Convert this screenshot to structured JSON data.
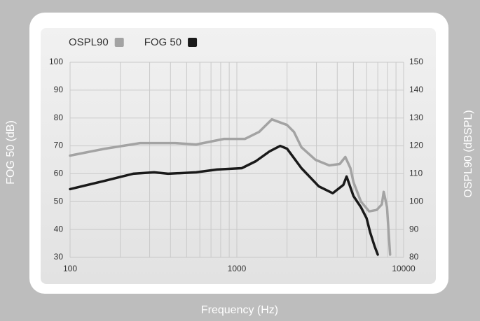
{
  "chart_data": {
    "type": "line",
    "x_label": "Frequency (Hz)",
    "y_label": "FOG 50 (dB)",
    "y2_label": "OSPL90 (dBSPL)",
    "xlim": [
      100,
      10000
    ],
    "xticks": [
      100,
      1000,
      10000
    ],
    "xscale": "log",
    "ylim": [
      30,
      100
    ],
    "yticks": [
      30,
      40,
      50,
      60,
      70,
      80,
      90,
      100
    ],
    "y2lim": [
      80,
      150
    ],
    "y2ticks": [
      80,
      90,
      100,
      110,
      120,
      130,
      140,
      150
    ],
    "grid": true,
    "minor_grid": true,
    "legend": "top-left",
    "series": [
      {
        "name": "OSPL90",
        "color": "#a3a3a3",
        "axis": "y2",
        "x": [
          100,
          162,
          263,
          427,
          570,
          838,
          1120,
          1360,
          1620,
          2000,
          2200,
          2440,
          2960,
          3580,
          4140,
          4470,
          4800,
          5000,
          5550,
          6220,
          6900,
          7400,
          7600,
          7950,
          8300
        ],
        "values": [
          116.5,
          119,
          121,
          121,
          120.5,
          122.5,
          122.5,
          125,
          129.5,
          127.5,
          125,
          119.5,
          115,
          113,
          113.5,
          116,
          112,
          107,
          100,
          96.5,
          97,
          99,
          103.5,
          98,
          81
        ]
      },
      {
        "name": "FOG 50",
        "color": "#1a1a1a",
        "x": [
          100,
          162,
          239,
          319,
          387,
          570,
          762,
          1070,
          1300,
          1570,
          1820,
          2000,
          2440,
          3100,
          3760,
          4350,
          4550,
          5000,
          5550,
          6000,
          6300,
          6700,
          7000
        ],
        "values": [
          54.5,
          57.5,
          60,
          60.5,
          60,
          60.5,
          61.5,
          62,
          64.5,
          68,
          70,
          69,
          62,
          55.5,
          53,
          56,
          59,
          52,
          48,
          44,
          39,
          34,
          31
        ]
      }
    ]
  }
}
